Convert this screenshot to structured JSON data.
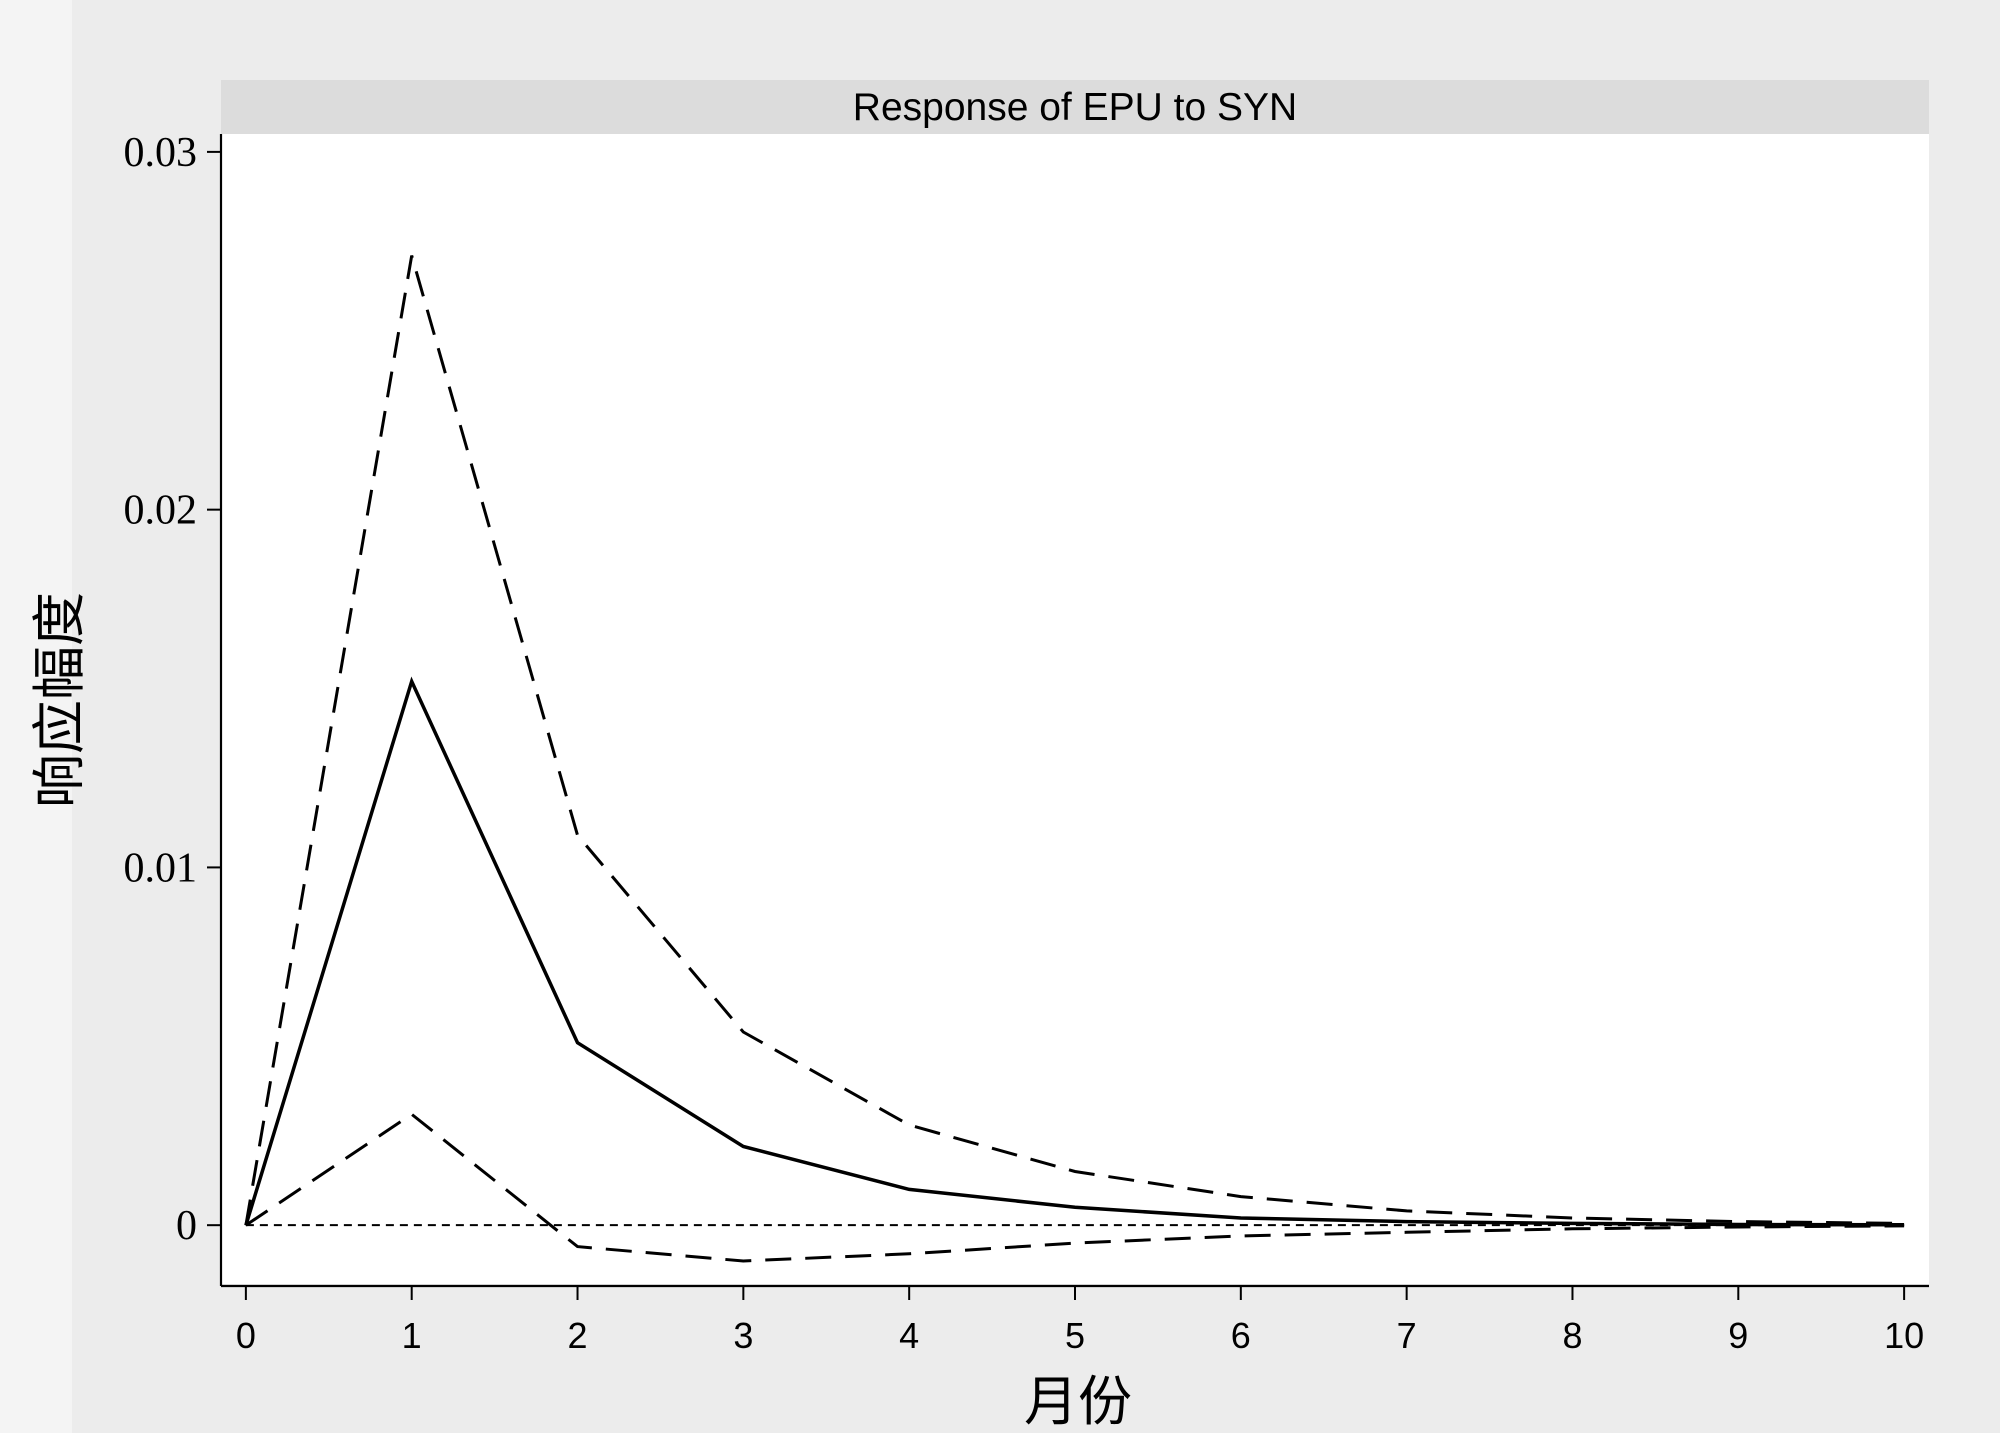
{
  "chart_data": {
    "type": "line",
    "title": "Response of EPU to SYN",
    "xlabel": "月份",
    "ylabel": "响应幅度",
    "x": [
      0,
      1,
      2,
      3,
      4,
      5,
      6,
      7,
      8,
      9,
      10
    ],
    "xticks": [
      "0",
      "1",
      "2",
      "3",
      "4",
      "5",
      "6",
      "7",
      "8",
      "9",
      "10"
    ],
    "yticks": [
      "0",
      "0.01",
      "0.02",
      "0.03"
    ],
    "xlim": [
      -0.15,
      10.15
    ],
    "ylim": [
      -0.0017,
      0.0305
    ],
    "grid": false,
    "series": [
      {
        "role": "upper-bound",
        "style": "dashed",
        "values": [
          0,
          0.0271,
          0.0109,
          0.0054,
          0.0028,
          0.0015,
          0.0008,
          0.0004,
          0.0002,
          0.0001,
          5e-05
        ]
      },
      {
        "role": "response",
        "style": "solid",
        "values": [
          0,
          0.0152,
          0.0051,
          0.0022,
          0.001,
          0.0005,
          0.0002,
          0.0001,
          5e-05,
          2e-05,
          1e-05
        ]
      },
      {
        "role": "lower-bound",
        "style": "dashed",
        "values": [
          0,
          0.0031,
          -0.0006,
          -0.001,
          -0.0008,
          -0.0005,
          -0.0003,
          -0.0002,
          -0.0001,
          -5e-05,
          -2e-05
        ]
      }
    ],
    "reference_line": {
      "y": 0,
      "style": "dashed"
    }
  }
}
